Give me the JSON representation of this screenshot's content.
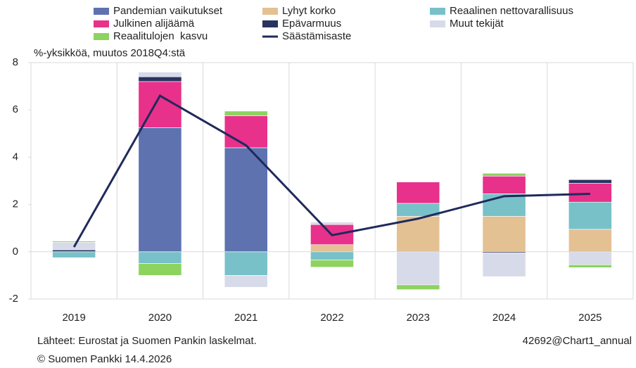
{
  "chart_data": {
    "type": "bar",
    "stacked": true,
    "y_label": "%-yksikköä, muutos 2018Q4:stä",
    "source": "Lähteet: Eurostat ja Suomen Pankin laskelmat.",
    "chart_id": "42692@Chart1_annual",
    "copyright": "© Suomen Pankki 14.4.2026",
    "categories": [
      "2019",
      "2020",
      "2021",
      "2022",
      "2023",
      "2024",
      "2025"
    ],
    "ylim": [
      -2,
      8
    ],
    "yticks": [
      -2,
      0,
      2,
      4,
      6,
      8
    ],
    "series": [
      {
        "name": "Pandemian vaikutukset",
        "color": "#5e72b0",
        "values": [
          0,
          5.25,
          4.4,
          0,
          0,
          0,
          0
        ]
      },
      {
        "name": "Lyhyt korko",
        "color": "#e3c193",
        "values": [
          0,
          0,
          0,
          0.3,
          1.5,
          1.5,
          0.95
        ]
      },
      {
        "name": "Reaalinen nettovarallisuus",
        "color": "#78c1c9",
        "values": [
          -0.25,
          -0.5,
          -1.0,
          -0.35,
          0.55,
          0.95,
          1.15
        ]
      },
      {
        "name": "Julkinen alijäämä",
        "color": "#e8318a",
        "values": [
          0,
          1.95,
          1.35,
          0.85,
          0.9,
          0.75,
          0.8
        ]
      },
      {
        "name": "Epävarmuus",
        "color": "#283360",
        "values": [
          0.08,
          0.2,
          0,
          0,
          0,
          -0.05,
          0.15
        ]
      },
      {
        "name": "Muut tekijät",
        "color": "#d7dbe9",
        "values": [
          0.32,
          0.2,
          -0.5,
          0.1,
          -1.4,
          -1.0,
          -0.55
        ]
      },
      {
        "name": "Reaalitulojen  kasvu",
        "color": "#8dd35f",
        "values": [
          0.05,
          -0.5,
          0.2,
          -0.3,
          -0.2,
          0.12,
          -0.12
        ]
      },
      {
        "name": "Säästämisaste",
        "type": "line",
        "color": "#1f2a5c",
        "values": [
          0.2,
          6.6,
          4.5,
          0.7,
          1.4,
          2.35,
          2.45
        ]
      }
    ]
  }
}
